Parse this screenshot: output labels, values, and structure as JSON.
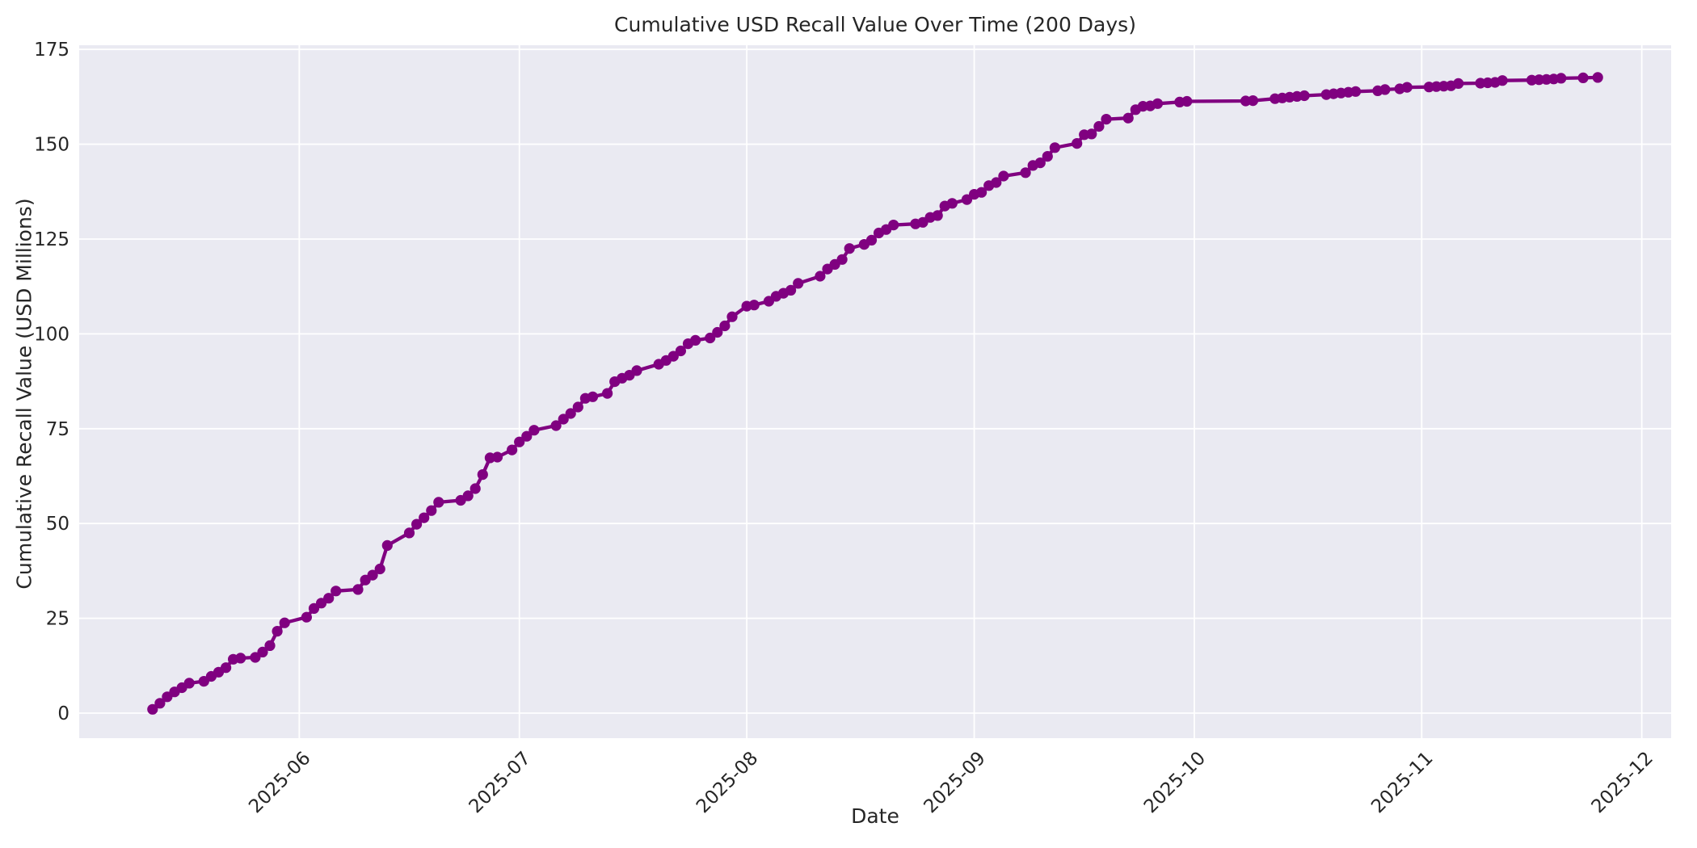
{
  "chart_data": {
    "type": "line",
    "title": "Cumulative USD Recall Value Over Time (200 Days)",
    "xlabel": "Date",
    "ylabel": "Cumulative Recall Value (USD Millions)",
    "marker": "o",
    "grid": true,
    "legend": "none",
    "xtick_rotation": 45,
    "xticks": [
      {
        "label": "2025-06",
        "date": "2025-06-01"
      },
      {
        "label": "2025-07",
        "date": "2025-07-01"
      },
      {
        "label": "2025-08",
        "date": "2025-08-01"
      },
      {
        "label": "2025-09",
        "date": "2025-09-01"
      },
      {
        "label": "2025-10",
        "date": "2025-10-01"
      },
      {
        "label": "2025-11",
        "date": "2025-11-01"
      },
      {
        "label": "2025-12",
        "date": "2025-12-01"
      }
    ],
    "yticks": [
      0,
      25,
      50,
      75,
      100,
      125,
      150,
      175
    ],
    "xlim": [
      "2025-05-02",
      "2025-12-05"
    ],
    "ylim": [
      -6.6,
      176.1
    ],
    "colors": {
      "line": "#800080",
      "marker": "#800080",
      "plot_background": "#EAEAF2",
      "grid": "#FFFFFF",
      "text": "#262626",
      "figure_background": "#FFFFFF"
    },
    "x": [
      "2025-05-12",
      "2025-05-13",
      "2025-05-14",
      "2025-05-15",
      "2025-05-16",
      "2025-05-17",
      "2025-05-19",
      "2025-05-20",
      "2025-05-21",
      "2025-05-22",
      "2025-05-23",
      "2025-05-24",
      "2025-05-26",
      "2025-05-27",
      "2025-05-28",
      "2025-05-29",
      "2025-05-30",
      "2025-06-02",
      "2025-06-03",
      "2025-06-04",
      "2025-06-05",
      "2025-06-06",
      "2025-06-09",
      "2025-06-10",
      "2025-06-11",
      "2025-06-12",
      "2025-06-13",
      "2025-06-16",
      "2025-06-17",
      "2025-06-18",
      "2025-06-19",
      "2025-06-20",
      "2025-06-23",
      "2025-06-24",
      "2025-06-25",
      "2025-06-26",
      "2025-06-27",
      "2025-06-28",
      "2025-06-30",
      "2025-07-01",
      "2025-07-02",
      "2025-07-03",
      "2025-07-06",
      "2025-07-07",
      "2025-07-08",
      "2025-07-09",
      "2025-07-10",
      "2025-07-11",
      "2025-07-13",
      "2025-07-14",
      "2025-07-15",
      "2025-07-16",
      "2025-07-17",
      "2025-07-20",
      "2025-07-21",
      "2025-07-22",
      "2025-07-23",
      "2025-07-24",
      "2025-07-25",
      "2025-07-27",
      "2025-07-28",
      "2025-07-29",
      "2025-07-30",
      "2025-08-01",
      "2025-08-02",
      "2025-08-04",
      "2025-08-05",
      "2025-08-06",
      "2025-08-07",
      "2025-08-08",
      "2025-08-11",
      "2025-08-12",
      "2025-08-13",
      "2025-08-14",
      "2025-08-15",
      "2025-08-17",
      "2025-08-18",
      "2025-08-19",
      "2025-08-20",
      "2025-08-21",
      "2025-08-24",
      "2025-08-25",
      "2025-08-26",
      "2025-08-27",
      "2025-08-28",
      "2025-08-29",
      "2025-08-31",
      "2025-09-01",
      "2025-09-02",
      "2025-09-03",
      "2025-09-04",
      "2025-09-05",
      "2025-09-08",
      "2025-09-09",
      "2025-09-10",
      "2025-09-11",
      "2025-09-12",
      "2025-09-15",
      "2025-09-16",
      "2025-09-17",
      "2025-09-18",
      "2025-09-19",
      "2025-09-22",
      "2025-09-23",
      "2025-09-24",
      "2025-09-25",
      "2025-09-26",
      "2025-09-29",
      "2025-09-30",
      "2025-10-08",
      "2025-10-09",
      "2025-10-12",
      "2025-10-13",
      "2025-10-14",
      "2025-10-15",
      "2025-10-16",
      "2025-10-19",
      "2025-10-20",
      "2025-10-21",
      "2025-10-22",
      "2025-10-23",
      "2025-10-26",
      "2025-10-27",
      "2025-10-29",
      "2025-10-30",
      "2025-11-02",
      "2025-11-03",
      "2025-11-04",
      "2025-11-05",
      "2025-11-06",
      "2025-11-09",
      "2025-11-10",
      "2025-11-11",
      "2025-11-12",
      "2025-11-16",
      "2025-11-17",
      "2025-11-18",
      "2025-11-19",
      "2025-11-20",
      "2025-11-23",
      "2025-11-25"
    ],
    "y": [
      1.0,
      2.6,
      4.3,
      5.6,
      6.7,
      7.9,
      8.4,
      9.7,
      10.8,
      12.0,
      14.2,
      14.5,
      14.7,
      16.1,
      17.8,
      21.6,
      23.8,
      25.3,
      27.6,
      29.0,
      30.3,
      32.2,
      32.6,
      35.1,
      36.4,
      38.0,
      44.2,
      47.5,
      49.8,
      51.5,
      53.4,
      55.6,
      56.1,
      57.3,
      59.2,
      62.9,
      67.3,
      67.5,
      69.4,
      71.5,
      73.0,
      74.6,
      75.8,
      77.5,
      79.0,
      80.7,
      83.0,
      83.4,
      84.3,
      87.4,
      88.3,
      89.1,
      90.3,
      92.0,
      93.0,
      94.1,
      95.5,
      97.4,
      98.3,
      98.9,
      100.4,
      102.1,
      104.5,
      107.3,
      107.6,
      108.6,
      109.9,
      110.7,
      111.5,
      113.3,
      115.2,
      117.1,
      118.3,
      119.6,
      122.5,
      123.6,
      124.7,
      126.6,
      127.5,
      128.7,
      129.0,
      129.4,
      130.7,
      131.2,
      133.7,
      134.4,
      135.4,
      136.8,
      137.3,
      139.1,
      139.9,
      141.6,
      142.5,
      144.4,
      145.1,
      146.8,
      149.1,
      150.2,
      152.5,
      152.7,
      154.7,
      156.6,
      156.9,
      159.1,
      160.0,
      160.1,
      160.7,
      161.1,
      161.3,
      161.4,
      161.5,
      162.0,
      162.2,
      162.4,
      162.6,
      162.8,
      163.1,
      163.3,
      163.5,
      163.7,
      163.9,
      164.1,
      164.4,
      164.6,
      165.0,
      165.1,
      165.2,
      165.3,
      165.4,
      166.0,
      166.1,
      166.2,
      166.3,
      166.8,
      166.9,
      167.0,
      167.1,
      167.2,
      167.4,
      167.5,
      167.6
    ]
  }
}
